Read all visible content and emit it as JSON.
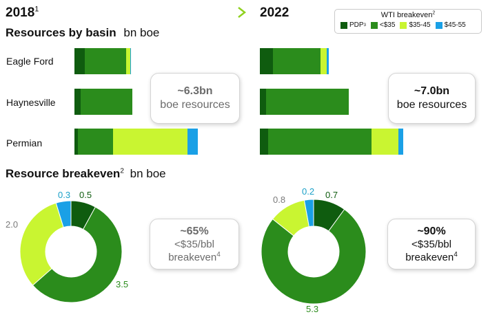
{
  "header": {
    "year_2018": "2018",
    "year_2018_footnote": "1",
    "year_2022": "2022"
  },
  "legend": {
    "title": "WTI breakeven",
    "title_footnote": "2",
    "items": [
      {
        "label": "PDP",
        "footnote": "3",
        "color": "#0f5c0f"
      },
      {
        "label": "<$35",
        "footnote": "",
        "color": "#2b8c1c"
      },
      {
        "label": "$35-45",
        "footnote": "",
        "color": "#c9f531"
      },
      {
        "label": "$45-55",
        "footnote": "",
        "color": "#1aa0e6"
      }
    ]
  },
  "resources_section": {
    "title": "Resources by basin",
    "unit": "bn boe"
  },
  "breakeven_section": {
    "title": "Resource breakeven",
    "footnote": "2",
    "unit": "bn boe"
  },
  "callouts": {
    "res_2018": {
      "main": "~6.3bn",
      "sub": "boe resources"
    },
    "res_2022": {
      "main": "~7.0bn",
      "sub": "boe resources"
    },
    "be_2018": {
      "main": "~65%",
      "line2": "<$35/bbl",
      "line3": "breakeven",
      "footnote": "4"
    },
    "be_2022": {
      "main": "~90%",
      "line2": "<$35/bbl",
      "line3": "breakeven",
      "footnote": "4"
    }
  },
  "chart_data": [
    {
      "type": "bar",
      "orientation": "horizontal",
      "stacked": true,
      "period": "2018",
      "categories": [
        "Eagle Ford",
        "Haynesville",
        "Permian"
      ],
      "series": [
        {
          "name": "PDP",
          "values": [
            0.25,
            0.15,
            0.08
          ]
        },
        {
          "name": "<$35",
          "values": [
            1.0,
            1.25,
            0.85
          ]
        },
        {
          "name": "$35-45",
          "values": [
            0.1,
            0.0,
            1.8
          ]
        },
        {
          "name": "$45-55",
          "values": [
            0.02,
            0.0,
            0.25
          ]
        }
      ]
    },
    {
      "type": "bar",
      "orientation": "horizontal",
      "stacked": true,
      "period": "2022",
      "categories": [
        "Eagle Ford",
        "Haynesville",
        "Permian"
      ],
      "series": [
        {
          "name": "PDP",
          "values": [
            0.32,
            0.15,
            0.2
          ]
        },
        {
          "name": "<$35",
          "values": [
            1.15,
            2.0,
            2.5
          ]
        },
        {
          "name": "$35-45",
          "values": [
            0.15,
            0.0,
            0.65
          ]
        },
        {
          "name": "$45-55",
          "values": [
            0.05,
            0.0,
            0.12
          ]
        }
      ]
    },
    {
      "type": "pie",
      "donut": true,
      "period": "2018",
      "slices": [
        {
          "name": "PDP",
          "value": 0.5,
          "label": "0.5"
        },
        {
          "name": "<$35",
          "value": 3.5,
          "label": "3.5"
        },
        {
          "name": "$35-45",
          "value": 2.0,
          "label": "2.0"
        },
        {
          "name": "$45-55",
          "value": 0.3,
          "label": "0.3"
        }
      ]
    },
    {
      "type": "pie",
      "donut": true,
      "period": "2022",
      "slices": [
        {
          "name": "PDP",
          "value": 0.7,
          "label": "0.7"
        },
        {
          "name": "<$35",
          "value": 5.3,
          "label": "5.3"
        },
        {
          "name": "$35-45",
          "value": 0.8,
          "label": "0.8"
        },
        {
          "name": "$45-55",
          "value": 0.2,
          "label": "0.2"
        }
      ]
    }
  ],
  "colors": {
    "PDP": "#0f5c0f",
    "<$35": "#2b8c1c",
    "$35-45": "#c9f531",
    "$45-55": "#1aa0e6",
    "arrow": "#8fd11f",
    "label_pdp": "#0f5c0f",
    "label_lt35": "#2b8c1c",
    "label_35_45": "#7a7a7a",
    "label_45_55": "#1aa0c8"
  }
}
